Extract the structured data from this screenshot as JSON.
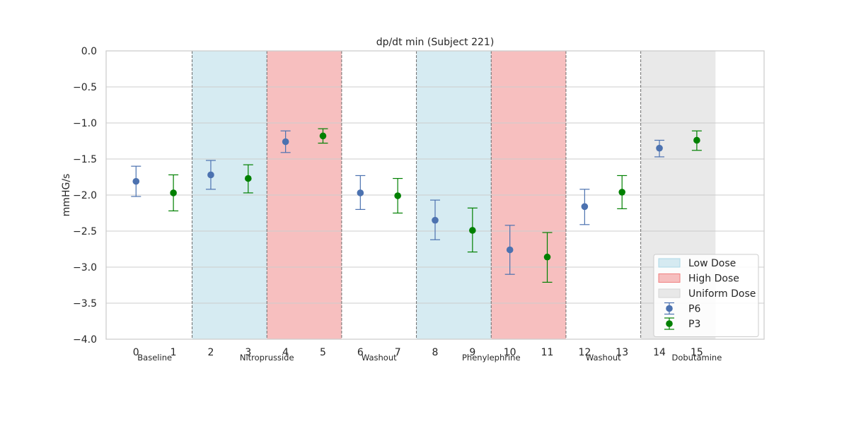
{
  "chart_data": {
    "type": "scatter",
    "title": "dp/dt min (Subject 221)",
    "xlabel": "",
    "ylabel": "mmHG/s",
    "xlim": [
      -0.8,
      16.8
    ],
    "ylim": [
      -4.0,
      0.0
    ],
    "xticks": [
      0,
      1,
      2,
      3,
      4,
      5,
      6,
      7,
      8,
      9,
      10,
      11,
      12,
      13,
      14,
      15
    ],
    "yticks": [
      0.0,
      -0.5,
      -1.0,
      -1.5,
      -2.0,
      -2.5,
      -3.0,
      -3.5,
      -4.0
    ],
    "ytick_labels": [
      "0.0",
      "−0.5",
      "−1.0",
      "−1.5",
      "−2.0",
      "−2.5",
      "−3.0",
      "−3.5",
      "−4.0"
    ],
    "grid": "horizontal",
    "legend_position": "lower right",
    "phase_regions": [
      {
        "start": 1.5,
        "end": 3.5,
        "kind": "low"
      },
      {
        "start": 3.5,
        "end": 5.5,
        "kind": "high"
      },
      {
        "start": 7.5,
        "end": 9.5,
        "kind": "low"
      },
      {
        "start": 9.5,
        "end": 11.5,
        "kind": "high"
      },
      {
        "start": 13.5,
        "end": 15.5,
        "kind": "uniform"
      }
    ],
    "phase_dividers": [
      1.5,
      3.5,
      5.5,
      7.5,
      9.5,
      11.5,
      13.5
    ],
    "phase_labels": [
      {
        "text": "Baseline",
        "x": 0.5
      },
      {
        "text": "Nitroprusside",
        "x": 3.5
      },
      {
        "text": "Washout",
        "x": 6.5
      },
      {
        "text": "Phenylephrine",
        "x": 9.5
      },
      {
        "text": "Washout",
        "x": 12.5
      },
      {
        "text": "Dobutamine",
        "x": 15.0
      }
    ],
    "region_legend": [
      {
        "kind": "low",
        "label": "Low Dose",
        "color": "#add8e6"
      },
      {
        "kind": "high",
        "label": "High Dose",
        "color": "#f08080"
      },
      {
        "kind": "uniform",
        "label": "Uniform Dose",
        "color": "#d3d3d3"
      }
    ],
    "series": [
      {
        "name": "P6",
        "color": "#4c72b0",
        "x": [
          0,
          2,
          4,
          6,
          8,
          10,
          12,
          14
        ],
        "y": [
          -1.81,
          -1.72,
          -1.26,
          -1.97,
          -2.35,
          -2.76,
          -2.16,
          -1.35
        ],
        "err_low": [
          -2.02,
          -1.92,
          -1.41,
          -2.2,
          -2.62,
          -3.1,
          -2.41,
          -1.47
        ],
        "err_high": [
          -1.6,
          -1.52,
          -1.11,
          -1.73,
          -2.07,
          -2.42,
          -1.92,
          -1.24
        ]
      },
      {
        "name": "P3",
        "color": "#008000",
        "x": [
          1,
          3,
          5,
          7,
          9,
          11,
          13,
          15
        ],
        "y": [
          -1.97,
          -1.77,
          -1.18,
          -2.01,
          -2.49,
          -2.86,
          -1.96,
          -1.24
        ],
        "err_low": [
          -2.22,
          -1.97,
          -1.28,
          -2.25,
          -2.79,
          -3.21,
          -2.19,
          -1.38
        ],
        "err_high": [
          -1.72,
          -1.58,
          -1.08,
          -1.77,
          -2.18,
          -2.52,
          -1.73,
          -1.11
        ]
      }
    ]
  }
}
